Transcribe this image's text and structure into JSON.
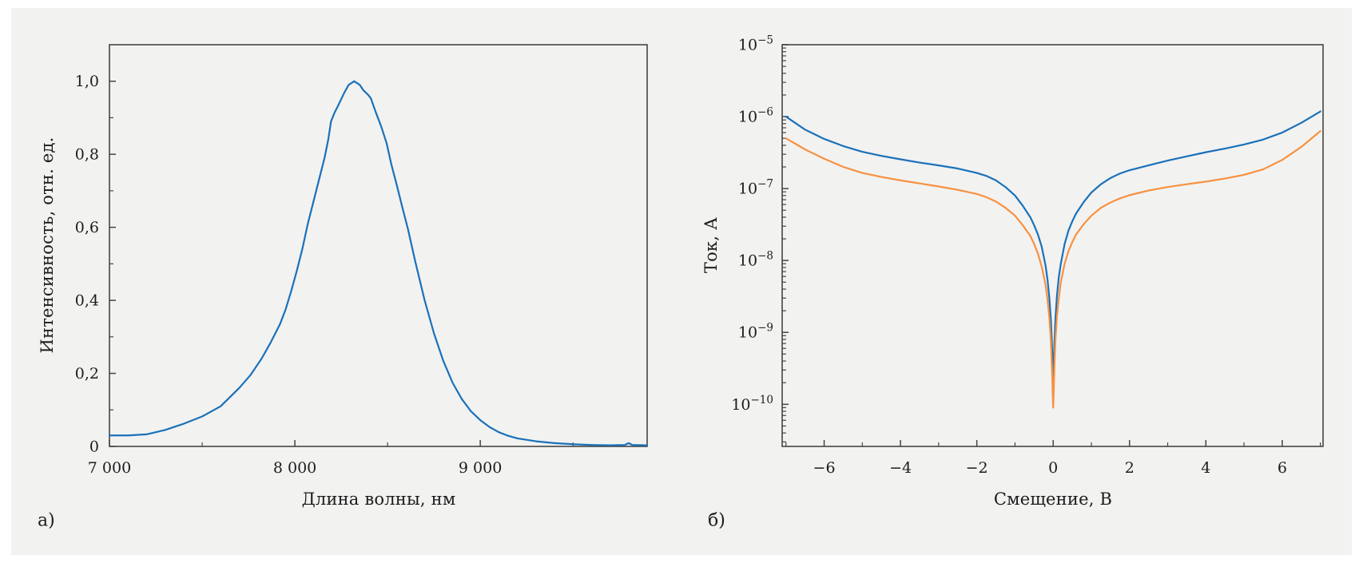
{
  "figure": {
    "background": "#f2f2f1",
    "page_background": "#ffffff",
    "axis_color": "#454545",
    "text_color": "#1c1c1c"
  },
  "chart_data": [
    {
      "type": "line",
      "panel_label": "а)",
      "title": "",
      "xlabel": "Длина волны, нм",
      "ylabel": "Интенсивность, отн. ед.",
      "xlim": [
        7000,
        9900
      ],
      "ylim": [
        0,
        1.1
      ],
      "yscale": "linear",
      "grid": false,
      "legend": "none",
      "xticks": {
        "major": [
          7000,
          8000,
          9000
        ],
        "major_labels": [
          "7 000",
          "8 000",
          "9 000"
        ],
        "minor": [
          7500,
          8500,
          9500
        ]
      },
      "yticks": {
        "major": [
          0,
          0.2,
          0.4,
          0.6,
          0.8,
          1.0
        ],
        "major_labels": [
          "0",
          "0,2",
          "0,4",
          "0,6",
          "0,8",
          "1,0"
        ],
        "minor": [
          0.1,
          0.3,
          0.5,
          0.7,
          0.9
        ]
      },
      "series": [
        {
          "name": "spectrum",
          "color": "#1a71b9",
          "points": [
            [
              7000,
              0.03
            ],
            [
              7100,
              0.03
            ],
            [
              7200,
              0.033
            ],
            [
              7300,
              0.045
            ],
            [
              7400,
              0.062
            ],
            [
              7500,
              0.082
            ],
            [
              7600,
              0.11
            ],
            [
              7700,
              0.16
            ],
            [
              7760,
              0.195
            ],
            [
              7820,
              0.24
            ],
            [
              7870,
              0.285
            ],
            [
              7920,
              0.335
            ],
            [
              7950,
              0.375
            ],
            [
              7980,
              0.425
            ],
            [
              8010,
              0.48
            ],
            [
              8040,
              0.54
            ],
            [
              8070,
              0.61
            ],
            [
              8100,
              0.67
            ],
            [
              8130,
              0.73
            ],
            [
              8160,
              0.79
            ],
            [
              8180,
              0.84
            ],
            [
              8195,
              0.89
            ],
            [
              8215,
              0.915
            ],
            [
              8235,
              0.935
            ],
            [
              8265,
              0.967
            ],
            [
              8290,
              0.99
            ],
            [
              8320,
              1.0
            ],
            [
              8350,
              0.99
            ],
            [
              8370,
              0.975
            ],
            [
              8395,
              0.963
            ],
            [
              8410,
              0.953
            ],
            [
              8435,
              0.917
            ],
            [
              8465,
              0.877
            ],
            [
              8495,
              0.83
            ],
            [
              8520,
              0.773
            ],
            [
              8550,
              0.715
            ],
            [
              8580,
              0.654
            ],
            [
              8610,
              0.595
            ],
            [
              8650,
              0.505
            ],
            [
              8700,
              0.4
            ],
            [
              8750,
              0.31
            ],
            [
              8800,
              0.235
            ],
            [
              8850,
              0.175
            ],
            [
              8900,
              0.13
            ],
            [
              8950,
              0.096
            ],
            [
              9000,
              0.072
            ],
            [
              9050,
              0.053
            ],
            [
              9100,
              0.039
            ],
            [
              9150,
              0.029
            ],
            [
              9200,
              0.022
            ],
            [
              9300,
              0.014
            ],
            [
              9400,
              0.009
            ],
            [
              9500,
              0.006
            ],
            [
              9600,
              0.004
            ],
            [
              9700,
              0.003
            ],
            [
              9780,
              0.004
            ],
            [
              9800,
              0.009
            ],
            [
              9820,
              0.004
            ],
            [
              9900,
              0.003
            ]
          ]
        }
      ]
    },
    {
      "type": "line",
      "panel_label": "б)",
      "title": "",
      "xlabel": "Смещение, В",
      "ylabel": "Ток, А",
      "xlim": [
        -7.1,
        7.07
      ],
      "ylim": [
        2.6e-11,
        1e-05
      ],
      "yscale": "log",
      "grid": false,
      "legend": "none",
      "xticks": {
        "major": [
          -6,
          -4,
          -2,
          0,
          2,
          4,
          6
        ],
        "major_labels": [
          "−6",
          "−4",
          "−2",
          "0",
          "2",
          "4",
          "6"
        ],
        "minor": [
          -7,
          -5,
          -3,
          -1,
          1,
          3,
          5,
          7
        ]
      },
      "yticks": {
        "major_exponents": [
          -5,
          -6,
          -7,
          -8,
          -9,
          -10
        ],
        "major_label_base": "10"
      },
      "series": [
        {
          "name": "curve-1",
          "color": "#1a71b9",
          "points": [
            [
              -7,
              1e-06
            ],
            [
              -6.5,
              6.6e-07
            ],
            [
              -6,
              4.9e-07
            ],
            [
              -5.5,
              3.9e-07
            ],
            [
              -5,
              3.25e-07
            ],
            [
              -4.5,
              2.85e-07
            ],
            [
              -4,
              2.55e-07
            ],
            [
              -3.5,
              2.3e-07
            ],
            [
              -3,
              2.1e-07
            ],
            [
              -2.5,
              1.9e-07
            ],
            [
              -2,
              1.65e-07
            ],
            [
              -1.75,
              1.5e-07
            ],
            [
              -1.5,
              1.3e-07
            ],
            [
              -1.25,
              1.05e-07
            ],
            [
              -1,
              8e-08
            ],
            [
              -0.8,
              5.8e-08
            ],
            [
              -0.6,
              4e-08
            ],
            [
              -0.5,
              3.1e-08
            ],
            [
              -0.4,
              2.3e-08
            ],
            [
              -0.3,
              1.55e-08
            ],
            [
              -0.2,
              8.5e-09
            ],
            [
              -0.15,
              5.5e-09
            ],
            [
              -0.1,
              3e-09
            ],
            [
              -0.06,
              1.5e-09
            ],
            [
              -0.03,
              6.5e-10
            ],
            [
              -0.012,
              3.2e-10
            ],
            [
              0,
              2.2e-10
            ],
            [
              0.012,
              3.2e-10
            ],
            [
              0.03,
              6.5e-10
            ],
            [
              0.06,
              1.6e-09
            ],
            [
              0.1,
              3.3e-09
            ],
            [
              0.15,
              6e-09
            ],
            [
              0.2,
              9e-09
            ],
            [
              0.3,
              1.7e-08
            ],
            [
              0.4,
              2.6e-08
            ],
            [
              0.5,
              3.5e-08
            ],
            [
              0.6,
              4.5e-08
            ],
            [
              0.8,
              6.5e-08
            ],
            [
              1,
              8.8e-08
            ],
            [
              1.25,
              1.15e-07
            ],
            [
              1.5,
              1.4e-07
            ],
            [
              1.75,
              1.62e-07
            ],
            [
              2,
              1.8e-07
            ],
            [
              2.5,
              2.1e-07
            ],
            [
              3,
              2.45e-07
            ],
            [
              3.5,
              2.8e-07
            ],
            [
              4,
              3.2e-07
            ],
            [
              4.5,
              3.6e-07
            ],
            [
              5,
              4.1e-07
            ],
            [
              5.5,
              4.8e-07
            ],
            [
              6,
              6e-07
            ],
            [
              6.5,
              8.2e-07
            ],
            [
              7,
              1.18e-06
            ]
          ]
        },
        {
          "name": "curve-2",
          "color": "#f79140",
          "points": [
            [
              -7,
              5e-07
            ],
            [
              -6.5,
              3.5e-07
            ],
            [
              -6,
              2.6e-07
            ],
            [
              -5.5,
              2e-07
            ],
            [
              -5,
              1.65e-07
            ],
            [
              -4.5,
              1.45e-07
            ],
            [
              -4,
              1.3e-07
            ],
            [
              -3.5,
              1.18e-07
            ],
            [
              -3,
              1.07e-07
            ],
            [
              -2.5,
              9.6e-08
            ],
            [
              -2,
              8.4e-08
            ],
            [
              -1.75,
              7.6e-08
            ],
            [
              -1.5,
              6.6e-08
            ],
            [
              -1.25,
              5.4e-08
            ],
            [
              -1,
              4.2e-08
            ],
            [
              -0.8,
              3.1e-08
            ],
            [
              -0.6,
              2.2e-08
            ],
            [
              -0.5,
              1.7e-08
            ],
            [
              -0.4,
              1.25e-08
            ],
            [
              -0.3,
              8.2e-09
            ],
            [
              -0.2,
              4.6e-09
            ],
            [
              -0.15,
              2.9e-09
            ],
            [
              -0.1,
              1.6e-09
            ],
            [
              -0.06,
              7.5e-10
            ],
            [
              -0.03,
              3e-10
            ],
            [
              -0.012,
              1.4e-10
            ],
            [
              0,
              9e-11
            ],
            [
              0.012,
              1.4e-10
            ],
            [
              0.03,
              3.1e-10
            ],
            [
              0.06,
              8e-10
            ],
            [
              0.1,
              1.7e-09
            ],
            [
              0.15,
              3.1e-09
            ],
            [
              0.2,
              5e-09
            ],
            [
              0.3,
              9e-09
            ],
            [
              0.4,
              1.35e-08
            ],
            [
              0.5,
              1.8e-08
            ],
            [
              0.6,
              2.3e-08
            ],
            [
              0.8,
              3.2e-08
            ],
            [
              1,
              4.2e-08
            ],
            [
              1.25,
              5.4e-08
            ],
            [
              1.5,
              6.4e-08
            ],
            [
              1.75,
              7.3e-08
            ],
            [
              2,
              8.1e-08
            ],
            [
              2.5,
              9.4e-08
            ],
            [
              3,
              1.05e-07
            ],
            [
              3.5,
              1.15e-07
            ],
            [
              4,
              1.25e-07
            ],
            [
              4.5,
              1.38e-07
            ],
            [
              5,
              1.55e-07
            ],
            [
              5.5,
              1.85e-07
            ],
            [
              6,
              2.5e-07
            ],
            [
              6.5,
              3.8e-07
            ],
            [
              7,
              6.3e-07
            ]
          ]
        }
      ]
    }
  ]
}
